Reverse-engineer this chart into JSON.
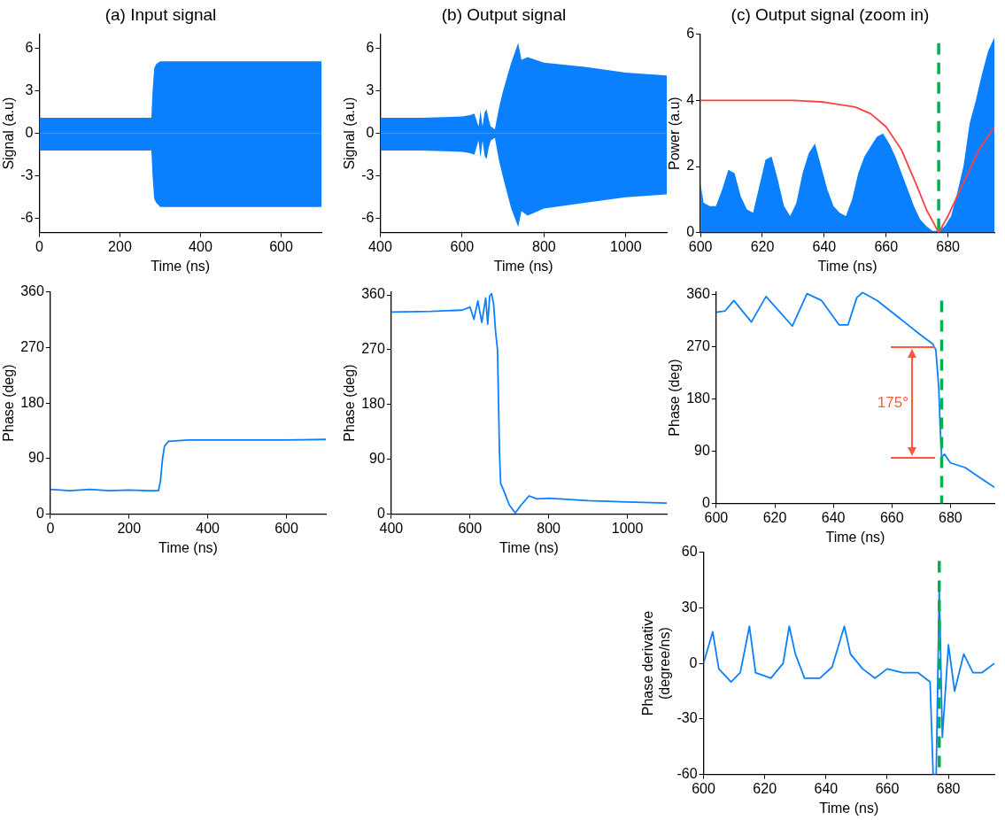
{
  "chart_data": [
    {
      "type": "area",
      "title": "(a) Input signal",
      "xlabel": "Time (ns)",
      "ylabel": "Signal (a.u)",
      "xlim": [
        0,
        700
      ],
      "xticks": [
        0,
        200,
        400,
        600
      ],
      "ylim": [
        -7,
        7
      ],
      "yticks": [
        -6,
        -3,
        0,
        3,
        6
      ],
      "grid": false,
      "legend": false,
      "x": [
        0,
        100,
        200,
        278,
        281,
        285,
        290,
        300,
        400,
        500,
        600,
        700
      ],
      "series": [
        {
          "color": "#0a80ff",
          "values": [
            1.1,
            1.1,
            1.1,
            1.1,
            3,
            4.6,
            4.9,
            5.1,
            5.1,
            5.1,
            5.1,
            5.1
          ]
        },
        {
          "color": "#0a80ff",
          "values": [
            -1.2,
            -1.2,
            -1.2,
            -1.2,
            -3,
            -4.6,
            -4.9,
            -5.2,
            -5.2,
            -5.2,
            -5.2,
            -5.2
          ]
        }
      ]
    },
    {
      "type": "line",
      "xlabel": "Time (ns)",
      "ylabel": "Phase (deg)",
      "xlim": [
        0,
        700
      ],
      "xticks": [
        0,
        200,
        400,
        600
      ],
      "ylim": [
        0,
        360
      ],
      "yticks": [
        0,
        90,
        180,
        270,
        360
      ],
      "grid": false,
      "legend": false,
      "x": [
        0,
        50,
        100,
        150,
        200,
        250,
        275,
        280,
        285,
        290,
        300,
        350,
        400,
        500,
        600,
        700
      ],
      "series": [
        {
          "color": "#0a80ff",
          "values": [
            40,
            38,
            40,
            38,
            39,
            38,
            38,
            55,
            90,
            110,
            118,
            120,
            120,
            120,
            120,
            121
          ]
        }
      ]
    },
    {
      "type": "area",
      "title": "(b) Output signal",
      "xlabel": "Time (ns)",
      "ylabel": "Signal (a.u)",
      "xlim": [
        400,
        1100
      ],
      "xticks": [
        400,
        600,
        800,
        1000
      ],
      "ylim": [
        -7,
        7
      ],
      "yticks": [
        -6,
        -3,
        0,
        3,
        6
      ],
      "grid": false,
      "legend": false,
      "x": [
        400,
        500,
        600,
        620,
        630,
        640,
        645,
        650,
        655,
        660,
        665,
        670,
        680,
        690,
        700,
        720,
        737,
        745,
        760,
        800,
        900,
        1000,
        1100
      ],
      "series": [
        {
          "color": "#0a80ff",
          "values": [
            1.1,
            1.1,
            1.2,
            1.3,
            1.4,
            0.5,
            1.6,
            0.5,
            1.5,
            1.7,
            1.0,
            0.5,
            0.3,
            1.8,
            3,
            5,
            6.4,
            5.2,
            5.4,
            5.0,
            4.7,
            4.3,
            4.1
          ]
        },
        {
          "color": "#0a80ff",
          "values": [
            -1.2,
            -1.2,
            -1.3,
            -1.4,
            -1.5,
            -0.5,
            -1.7,
            -0.5,
            -1.6,
            -1.8,
            -1.0,
            -0.5,
            -0.3,
            -1.9,
            -3.1,
            -5.3,
            -6.6,
            -5.5,
            -5.8,
            -5.3,
            -4.9,
            -4.5,
            -4.3
          ]
        }
      ]
    },
    {
      "type": "line",
      "xlabel": "Time (ns)",
      "ylabel": "Phase (deg)",
      "xlim": [
        400,
        1100
      ],
      "xticks": [
        400,
        600,
        800,
        1000
      ],
      "ylim": [
        0,
        365
      ],
      "yticks": [
        0,
        90,
        180,
        270,
        360
      ],
      "grid": false,
      "legend": false,
      "x": [
        400,
        500,
        580,
        600,
        610,
        620,
        630,
        640,
        645,
        650,
        655,
        660,
        665,
        670,
        672,
        675,
        678,
        685,
        700,
        715,
        730,
        750,
        770,
        800,
        900,
        1000,
        1100
      ],
      "series": [
        {
          "color": "#0a80ff",
          "values": [
            332,
            333,
            335,
            340,
            320,
            350,
            315,
            355,
            312,
            358,
            362,
            345,
            300,
            270,
            200,
            100,
            50,
            40,
            15,
            2,
            15,
            30,
            25,
            26,
            22,
            20,
            18
          ]
        }
      ]
    },
    {
      "type": "area",
      "title": "(c) Output signal (zoom in)",
      "xlabel": "Time (ns)",
      "ylabel": "Power (a.u)",
      "xlim": [
        600,
        695
      ],
      "xticks": [
        600,
        620,
        640,
        660,
        680
      ],
      "ylim": [
        0,
        6
      ],
      "yticks": [
        0,
        2,
        4,
        6
      ],
      "grid": false,
      "legend": false,
      "ref_lines": [
        {
          "axis": "x",
          "value": 677,
          "color": "#00b050",
          "line_style": "dashed"
        }
      ],
      "series": [
        {
          "color": "#0a80ff",
          "x": [
            600,
            601,
            603,
            605,
            607,
            609,
            611,
            613,
            615,
            617,
            619,
            621,
            623,
            625,
            627,
            629,
            631,
            633,
            635,
            637,
            639,
            641,
            643,
            645,
            647,
            649,
            651,
            653,
            655,
            657,
            659,
            661,
            663,
            665,
            667,
            669,
            671,
            673,
            675,
            677,
            679,
            681,
            683,
            685,
            687,
            689,
            691,
            693,
            695
          ],
          "values": [
            1.5,
            0.9,
            0.8,
            0.8,
            1.3,
            1.9,
            1.8,
            1.1,
            0.7,
            0.6,
            1.4,
            2.2,
            2.3,
            1.6,
            0.8,
            0.5,
            0.9,
            1.8,
            2.4,
            2.7,
            2.0,
            1.3,
            0.8,
            0.6,
            0.5,
            1.0,
            1.8,
            2.3,
            2.6,
            2.9,
            3.0,
            2.7,
            2.3,
            1.8,
            1.3,
            0.8,
            0.4,
            0.2,
            0.05,
            0.05,
            0.2,
            0.5,
            1.2,
            2.0,
            3.3,
            4.0,
            4.8,
            5.5,
            5.9
          ]
        },
        {
          "type": "line",
          "color": "#ff4040",
          "x": [
            600,
            620,
            630,
            640,
            650,
            655,
            660,
            665,
            670,
            673,
            677,
            680,
            685,
            690,
            695
          ],
          "values": [
            4,
            4,
            4,
            3.95,
            3.8,
            3.6,
            3.2,
            2.5,
            1.4,
            0.7,
            0,
            0.5,
            1.5,
            2.5,
            3.2
          ]
        }
      ]
    },
    {
      "type": "line",
      "xlabel": "Time (ns)",
      "ylabel": "Phase (deg)",
      "xlim": [
        600,
        695
      ],
      "xticks": [
        600,
        620,
        640,
        660,
        680
      ],
      "ylim": [
        0,
        365
      ],
      "yticks": [
        0,
        90,
        180,
        270,
        360
      ],
      "grid": false,
      "legend": false,
      "ref_lines": [
        {
          "axis": "x",
          "value": 677,
          "color": "#00b050",
          "line_style": "dashed"
        }
      ],
      "annotations": [
        "175°"
      ],
      "x": [
        600,
        603,
        606,
        612,
        617,
        626,
        631,
        636,
        642,
        645,
        648,
        650,
        655,
        660,
        665,
        670,
        674,
        675,
        676,
        676.5,
        677,
        678,
        680,
        685,
        690,
        695
      ],
      "series": [
        {
          "color": "#0a80ff",
          "values": [
            330,
            332,
            350,
            313,
            357,
            306,
            362,
            350,
            308,
            308,
            355,
            364,
            350,
            330,
            310,
            290,
            275,
            265,
            200,
            130,
            80,
            85,
            70,
            62,
            45,
            28
          ]
        }
      ]
    },
    {
      "type": "line",
      "xlabel": "Time (ns)",
      "ylabel": "Phase derivative\n(degree/ns)",
      "xlim": [
        600,
        695
      ],
      "xticks": [
        600,
        620,
        640,
        660,
        680
      ],
      "ylim": [
        -60,
        60
      ],
      "yticks": [
        -60,
        -30,
        0,
        30,
        60
      ],
      "grid": false,
      "legend": false,
      "ref_lines": [
        {
          "axis": "x",
          "value": 677,
          "color": "#00b050",
          "line_style": "dashed"
        }
      ],
      "x": [
        600,
        603,
        605,
        609,
        612,
        615,
        617,
        622,
        626,
        628,
        630,
        633,
        638,
        642,
        646,
        648,
        652,
        656,
        660,
        665,
        670,
        674,
        675,
        676,
        677,
        678,
        680,
        682,
        685,
        688,
        691,
        695
      ],
      "series": [
        {
          "color": "#0a80ff",
          "values": [
            0,
            17,
            -3,
            -10,
            -5,
            20,
            -5,
            -8,
            0,
            20,
            5,
            -8,
            -8,
            -2,
            20,
            5,
            -3,
            -8,
            -3,
            -5,
            -5,
            -10,
            -60,
            -60,
            40,
            -40,
            10,
            -15,
            5,
            -5,
            -5,
            0
          ]
        }
      ]
    }
  ]
}
